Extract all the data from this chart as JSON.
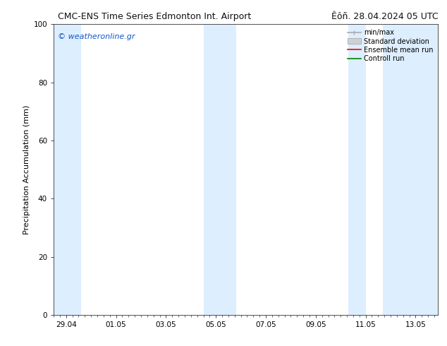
{
  "title_left": "CMC-ENS Time Series Edmonton Int. Airport",
  "title_right": "Êôñ. 28.04.2024 05 UTC",
  "ylabel": "Precipitation Accumulation (mm)",
  "watermark": "© weatheronline.gr",
  "ylim": [
    0,
    100
  ],
  "yticks": [
    0,
    20,
    40,
    60,
    80,
    100
  ],
  "xtick_labels": [
    "29.04",
    "01.05",
    "03.05",
    "05.05",
    "07.05",
    "09.05",
    "11.05",
    "13.05"
  ],
  "x_positions": [
    0,
    2,
    4,
    6,
    8,
    10,
    12,
    14
  ],
  "xlim": [
    -0.5,
    14.9
  ],
  "shade_color": "#ddeeff",
  "shade_bands": [
    [
      -0.5,
      0.6
    ],
    [
      5.5,
      6.0
    ],
    [
      6.0,
      6.8
    ],
    [
      11.3,
      12.0
    ],
    [
      12.7,
      14.9
    ]
  ],
  "legend_labels": [
    "min/max",
    "Standard deviation",
    "Ensemble mean run",
    "Controll run"
  ],
  "legend_colors_line": [
    "#aaaaaa",
    "#cccccc",
    "#ff0000",
    "#008000"
  ],
  "watermark_color": "#1155cc",
  "title_fontsize": 9,
  "ylabel_fontsize": 8,
  "tick_fontsize": 7.5,
  "watermark_fontsize": 8,
  "legend_fontsize": 7,
  "background_color": "#ffffff"
}
